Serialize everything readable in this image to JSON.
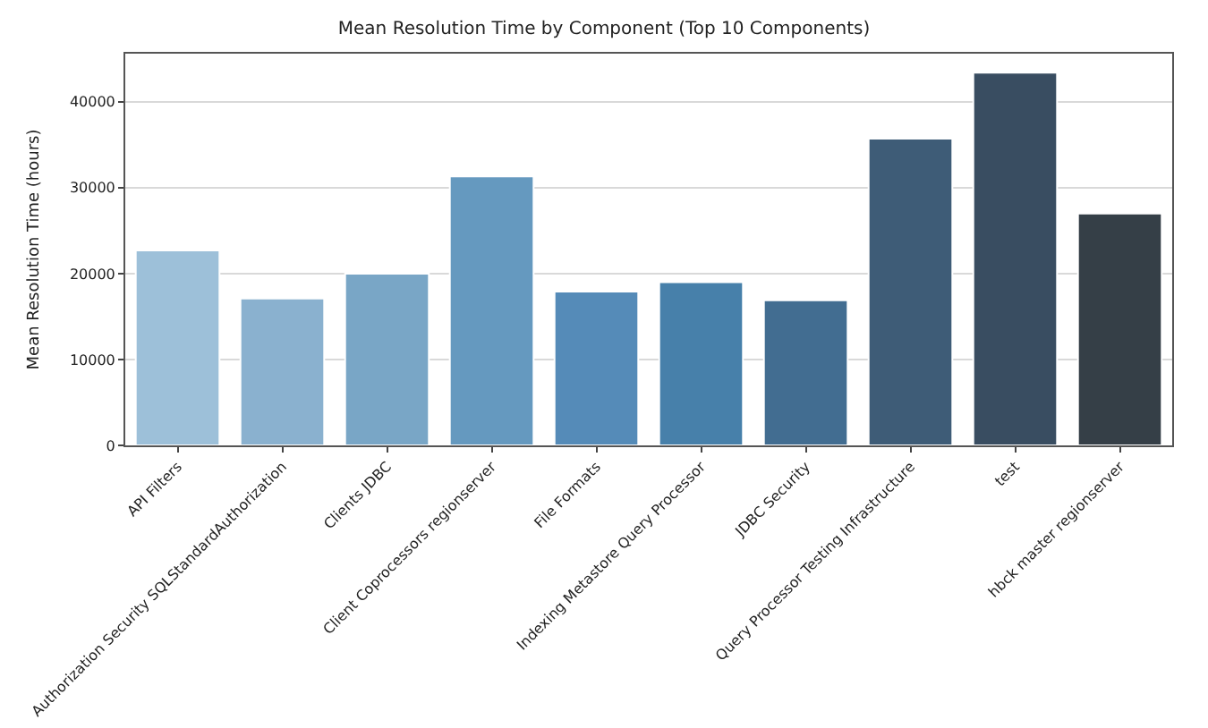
{
  "chart_data": {
    "type": "bar",
    "title": "Mean Resolution Time by Component (Top 10 Components)",
    "ylabel": "Mean Resolution Time (hours)",
    "categories": [
      "API Filters",
      "Authorization Security SQLStandardAuthorization",
      "Clients JDBC",
      "Client Coprocessors regionserver",
      "File Formats",
      "Indexing Metastore Query Processor",
      "JDBC Security",
      "Query Processor Testing Infrastructure",
      "test",
      "hbck master regionserver"
    ],
    "values": [
      22700,
      17100,
      20000,
      31300,
      17900,
      19000,
      16900,
      35700,
      43400,
      27000
    ],
    "colors": [
      "#9dc0d9",
      "#8ab1cf",
      "#79a6c6",
      "#6599bf",
      "#558bb8",
      "#4780aa",
      "#426d91",
      "#3e5c77",
      "#394d61",
      "#353f47"
    ],
    "ylim": [
      0,
      45600
    ],
    "yticks": [
      0,
      10000,
      20000,
      30000,
      40000
    ],
    "grid": "y"
  }
}
